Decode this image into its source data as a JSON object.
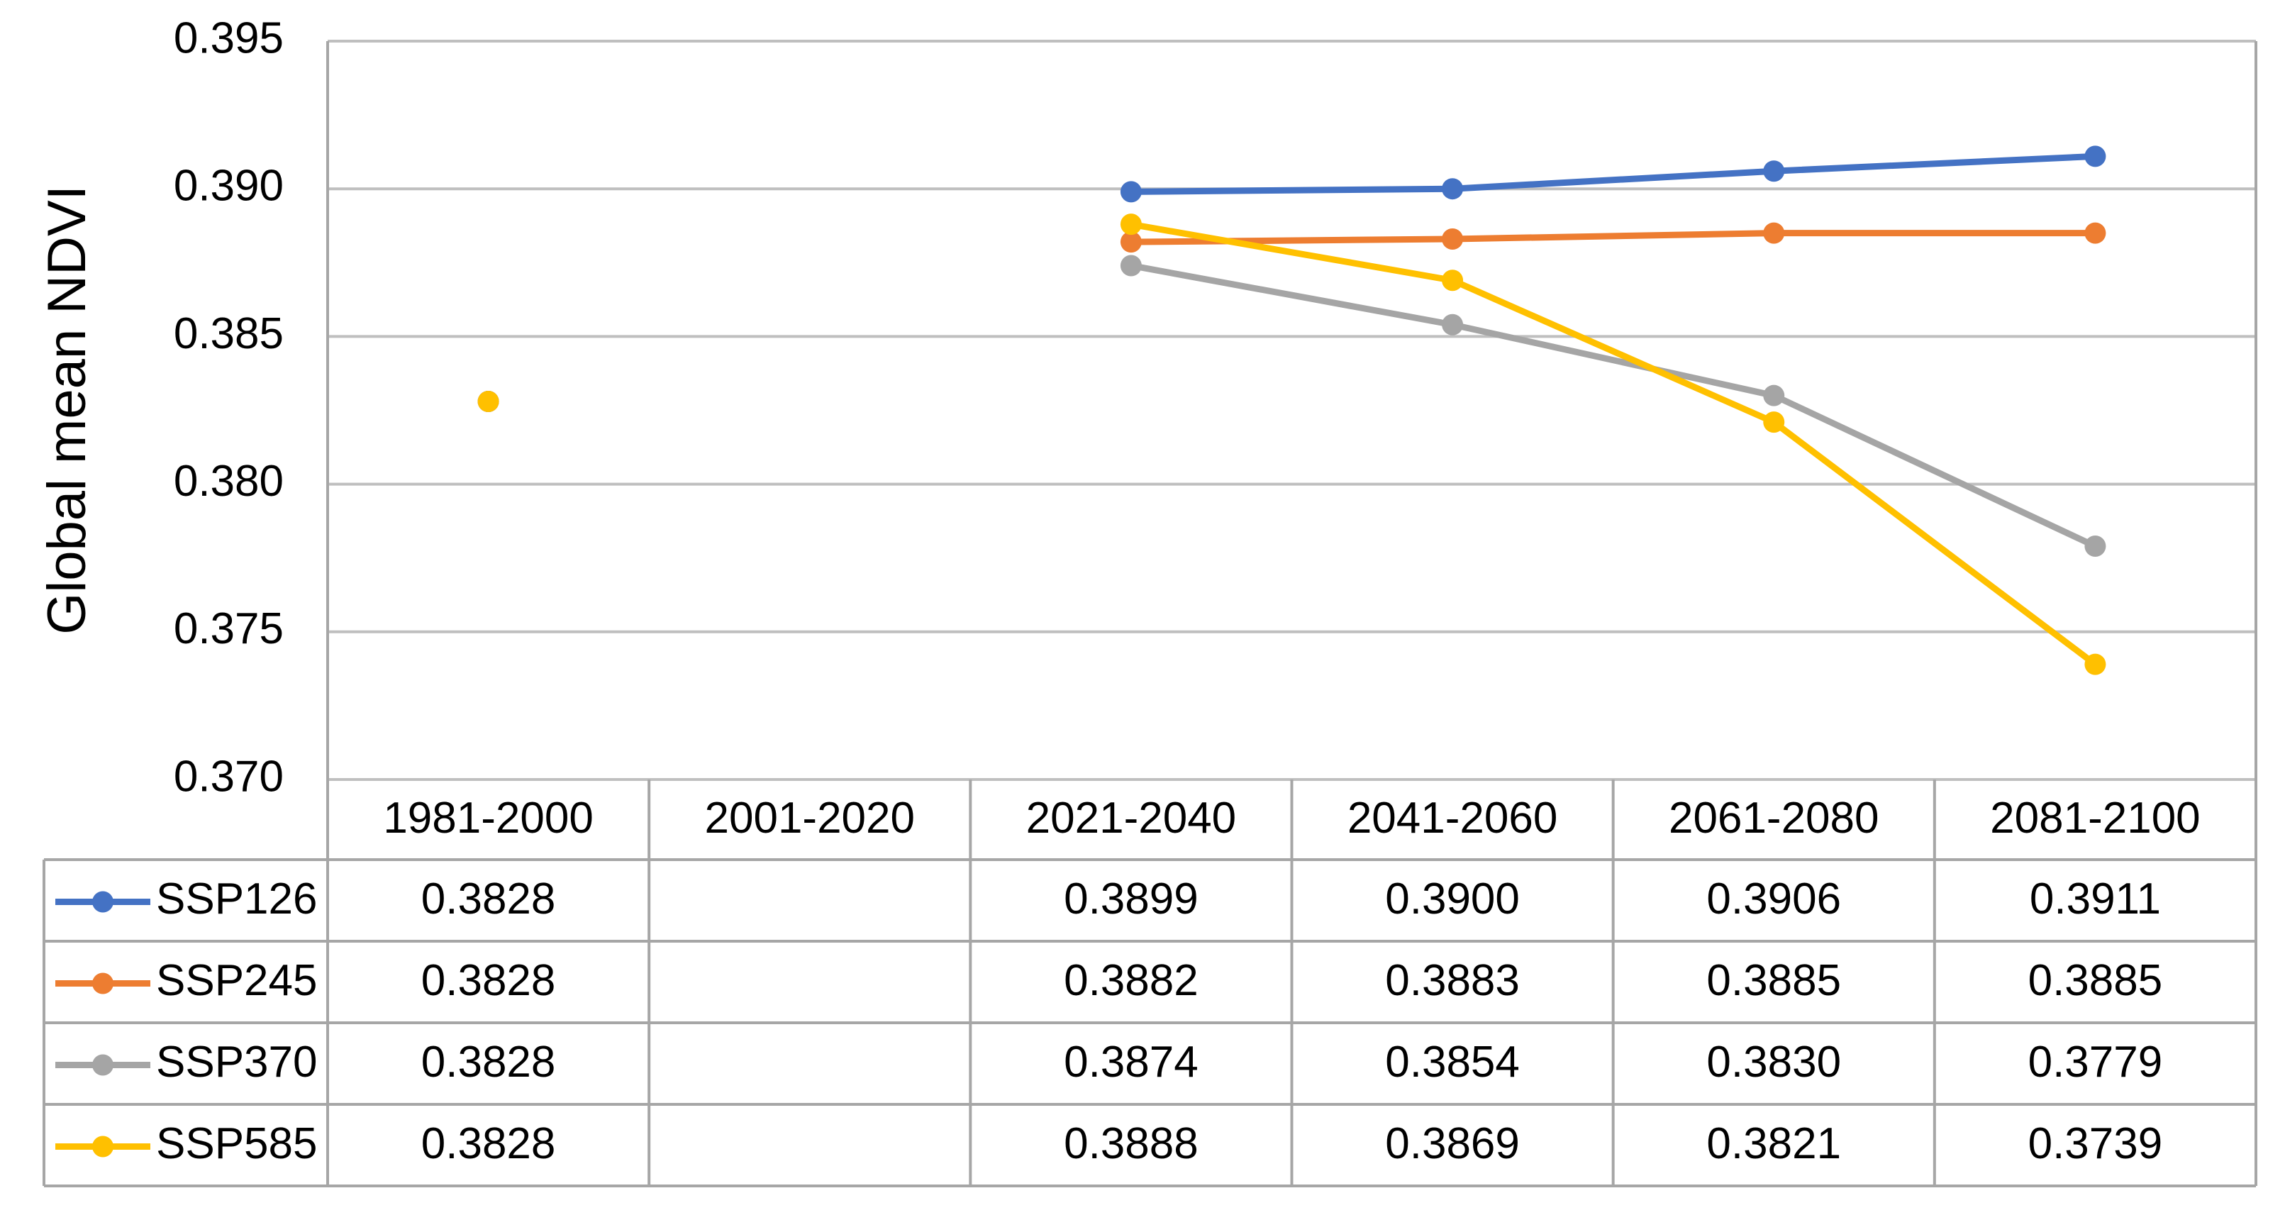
{
  "chart_data": {
    "type": "line",
    "y_label": "Global mean NDVI",
    "categories": [
      "1981-2000",
      "2001-2020",
      "2021-2040",
      "2041-2060",
      "2061-2080",
      "2081-2100"
    ],
    "series": [
      {
        "name": "SSP126",
        "color": "#4472c4",
        "values": [
          0.3828,
          null,
          0.3899,
          0.39,
          0.3906,
          0.3911
        ],
        "value_labels": [
          "0.3828",
          null,
          "0.3899",
          "0.3900",
          "0.3906",
          "0.3911"
        ]
      },
      {
        "name": "SSP245",
        "color": "#ed7d31",
        "values": [
          0.3828,
          null,
          0.3882,
          0.3883,
          0.3885,
          0.3885
        ],
        "value_labels": [
          "0.3828",
          null,
          "0.3882",
          "0.3883",
          "0.3885",
          "0.3885"
        ]
      },
      {
        "name": "SSP370",
        "color": "#a5a5a5",
        "values": [
          0.3828,
          null,
          0.3874,
          0.3854,
          0.383,
          0.3779
        ],
        "value_labels": [
          "0.3828",
          null,
          "0.3874",
          "0.3854",
          "0.3830",
          "0.3779"
        ]
      },
      {
        "name": "SSP585",
        "color": "#ffc000",
        "values": [
          0.3828,
          null,
          0.3888,
          0.3869,
          0.3821,
          0.3739
        ],
        "value_labels": [
          "0.3828",
          null,
          "0.3888",
          "0.3869",
          "0.3821",
          "0.3739"
        ]
      }
    ],
    "ylim": [
      0.37,
      0.395
    ],
    "yticks": [
      {
        "value": 0.37,
        "label": "0.370"
      },
      0.375,
      {
        "value": 0.38,
        "label": "0.380"
      },
      0.385,
      {
        "value": 0.39,
        "label": "0.390"
      },
      0.395
    ],
    "grid": true,
    "data_table": true
  }
}
